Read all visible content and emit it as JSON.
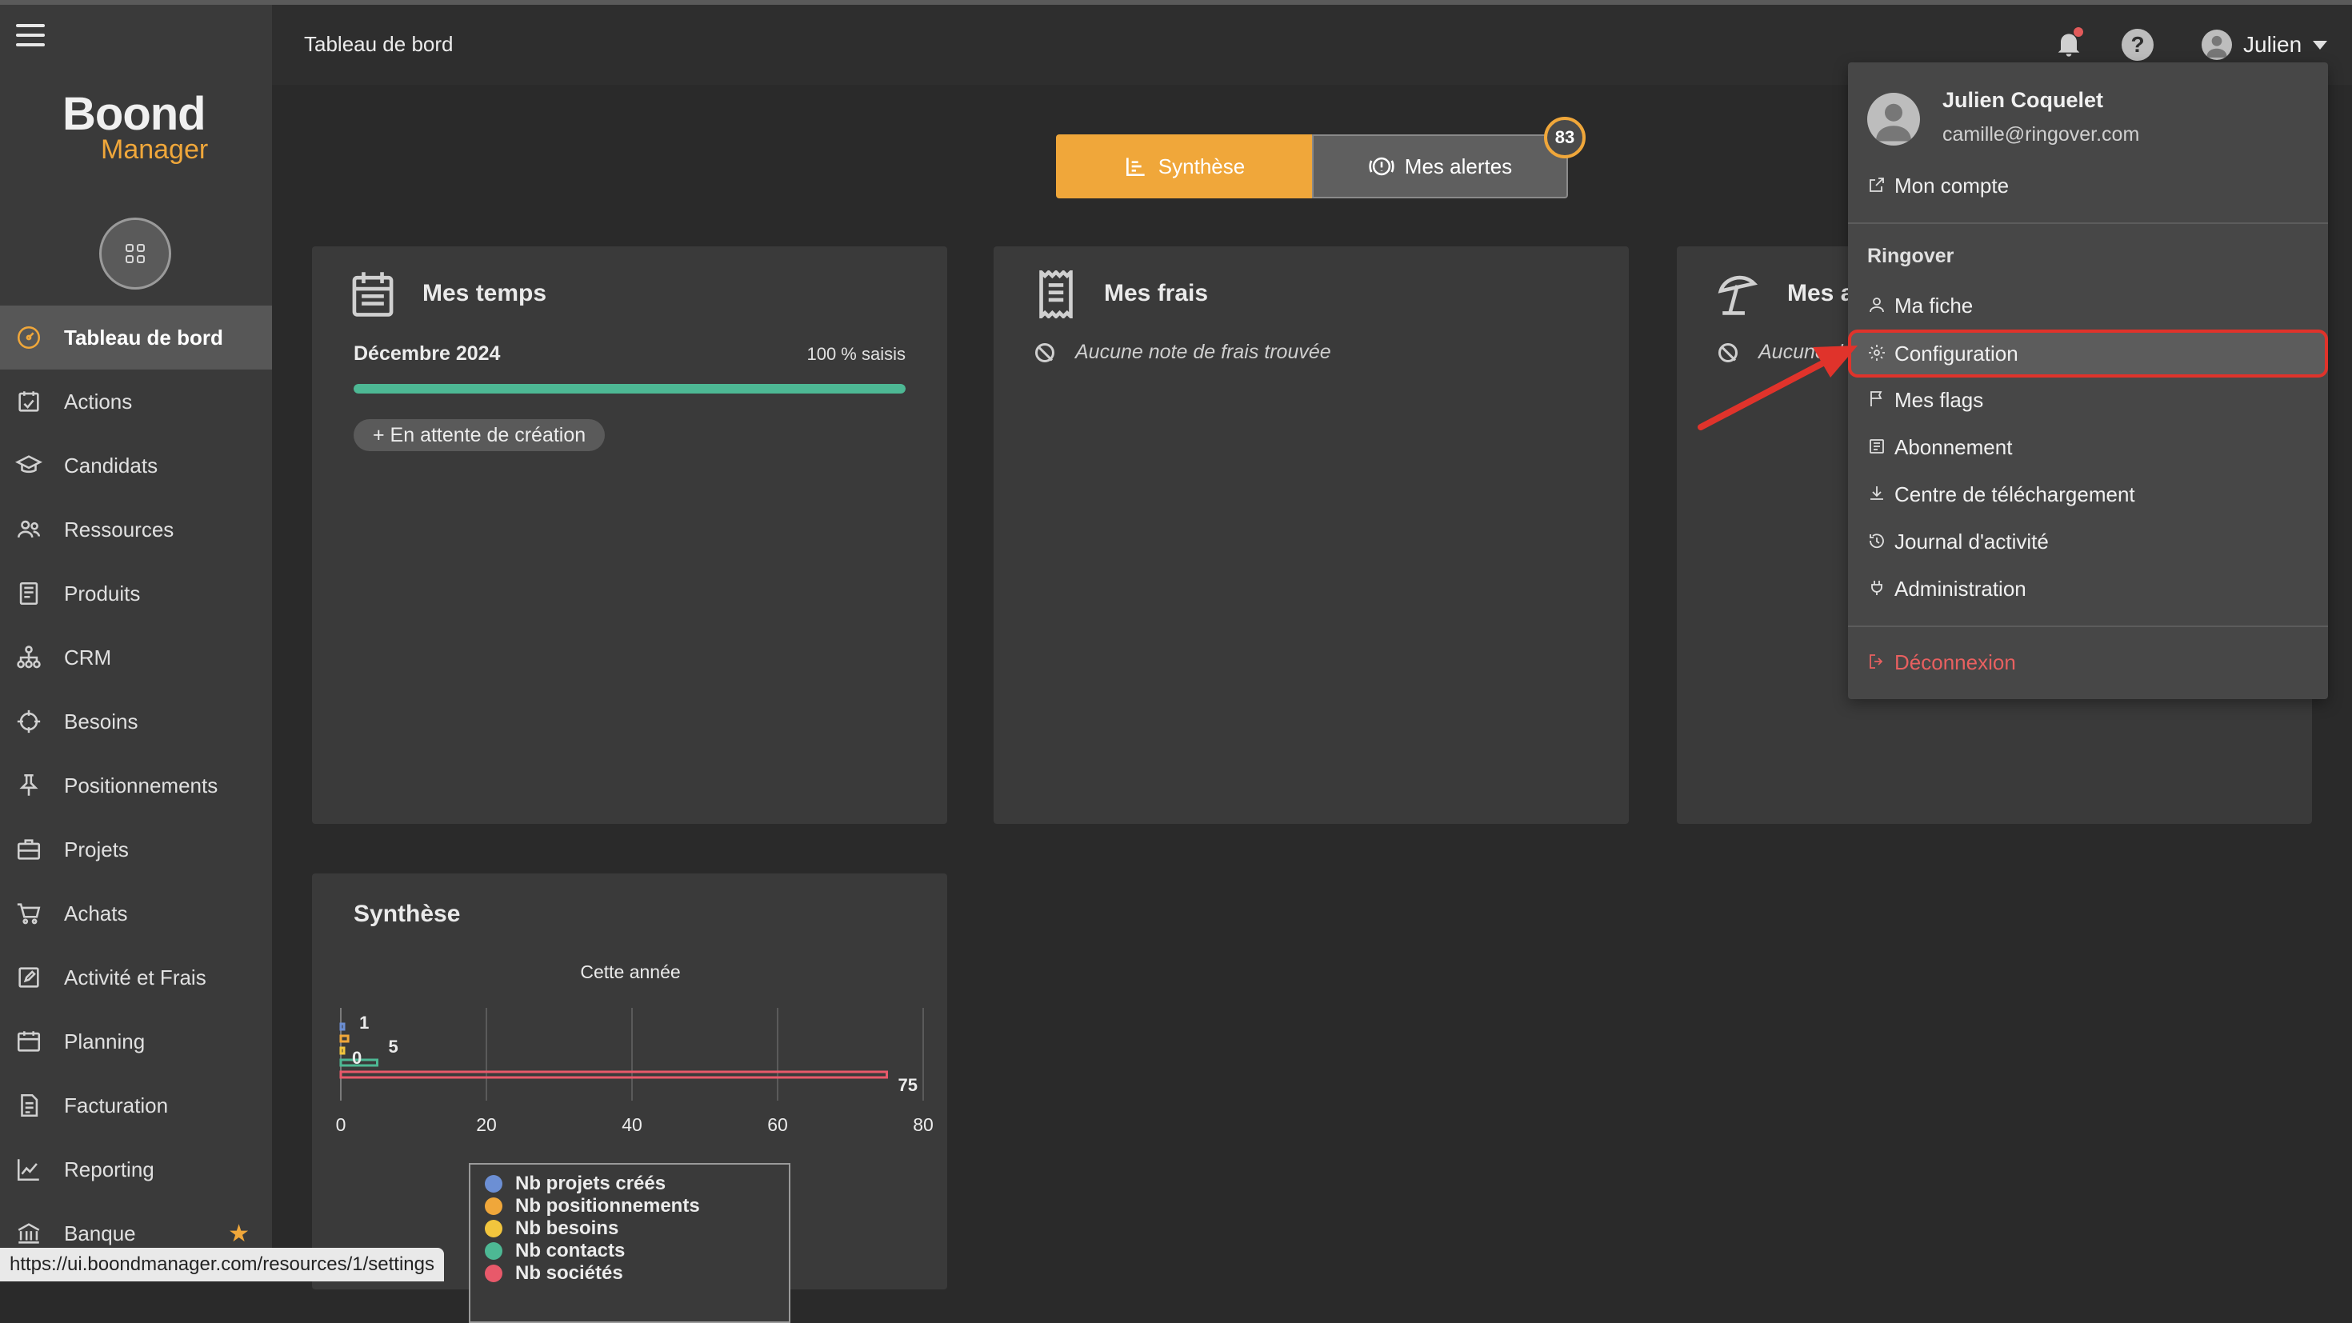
{
  "browser": {
    "status_url": "https://ui.boondmanager.com/resources/1/settings"
  },
  "brand": {
    "name": "Boond",
    "sub": "Manager",
    "accent": "#f0a73a"
  },
  "header": {
    "page_title": "Tableau de bord",
    "user_name": "Julien"
  },
  "sidebar": {
    "items": [
      {
        "label": "Tableau de bord",
        "icon": "dashboard-icon",
        "active": true
      },
      {
        "label": "Actions",
        "icon": "actions-icon"
      },
      {
        "label": "Candidats",
        "icon": "graduation-cap-icon"
      },
      {
        "label": "Ressources",
        "icon": "users-icon"
      },
      {
        "label": "Produits",
        "icon": "book-icon"
      },
      {
        "label": "CRM",
        "icon": "org-chart-icon"
      },
      {
        "label": "Besoins",
        "icon": "crosshair-icon"
      },
      {
        "label": "Positionnements",
        "icon": "pin-icon"
      },
      {
        "label": "Projets",
        "icon": "briefcase-icon"
      },
      {
        "label": "Achats",
        "icon": "cart-icon"
      },
      {
        "label": "Activité et Frais",
        "icon": "edit-icon"
      },
      {
        "label": "Planning",
        "icon": "calendar-icon"
      },
      {
        "label": "Facturation",
        "icon": "invoice-icon"
      },
      {
        "label": "Reporting",
        "icon": "chart-line-icon"
      },
      {
        "label": "Banque",
        "icon": "bank-icon"
      }
    ]
  },
  "tabs": {
    "synthese": "Synthèse",
    "alertes": "Mes alertes",
    "alertes_count": "83"
  },
  "cards": {
    "temps": {
      "title": "Mes temps",
      "month": "Décembre 2024",
      "percent_label": "100 % saisis",
      "progress": 1.0,
      "pending_label": "+ En attente de création"
    },
    "frais": {
      "title": "Mes frais",
      "empty": "Aucune note de frais trouvée"
    },
    "absences": {
      "title": "Mes a",
      "empty": "Aucune d"
    },
    "synthese": {
      "title": "Synthèse"
    }
  },
  "chart_data": {
    "type": "bar",
    "orientation": "horizontal",
    "title": "Cette année",
    "xlim": [
      0,
      80
    ],
    "xticks": [
      "0",
      "20",
      "40",
      "60",
      "80"
    ],
    "grid": true,
    "legend_position": "bottom",
    "series": [
      {
        "name": "Nb projets créés",
        "value": 0,
        "color": "#6c8fd4"
      },
      {
        "name": "Nb positionnements",
        "value": 1,
        "color": "#f0a73a"
      },
      {
        "name": "Nb besoins",
        "value": 0,
        "color": "#f2c53d"
      },
      {
        "name": "Nb contacts",
        "value": 5,
        "color": "#4db894"
      },
      {
        "name": "Nb sociétés",
        "value": 75,
        "color": "#e8596a"
      }
    ],
    "data_labels": [
      {
        "text": "1",
        "value": 1
      },
      {
        "text": "5",
        "value": 5
      },
      {
        "text": "0",
        "value": 0
      },
      {
        "text": "75",
        "value": 75
      }
    ]
  },
  "dropdown": {
    "full_name": "Julien Coquelet",
    "email": "camille@ringover.com",
    "account": "Mon compte",
    "section": "Ringover",
    "items": [
      {
        "label": "Ma fiche",
        "icon": "user-icon"
      },
      {
        "label": "Configuration",
        "icon": "gear-icon",
        "highlighted": true
      },
      {
        "label": "Mes flags",
        "icon": "flag-icon"
      },
      {
        "label": "Abonnement",
        "icon": "subscription-icon"
      },
      {
        "label": "Centre de téléchargement",
        "icon": "download-icon"
      },
      {
        "label": "Journal d'activité",
        "icon": "history-icon"
      },
      {
        "label": "Administration",
        "icon": "plug-icon"
      }
    ],
    "logout": "Déconnexion",
    "highlight_color": "#e0332b"
  }
}
